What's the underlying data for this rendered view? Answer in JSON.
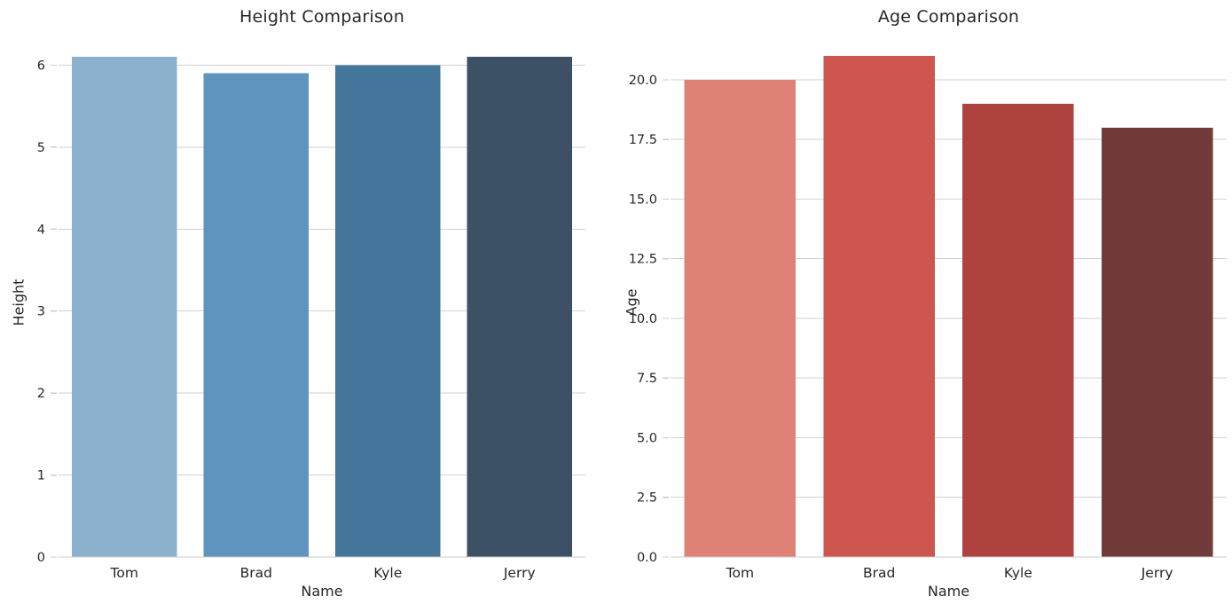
{
  "figure": {
    "background": "#ffffff",
    "text_color": "#262626",
    "grid_color": "#d2d2d2",
    "axis_line_color": "#cccccc"
  },
  "chart_data": [
    {
      "type": "bar",
      "title": "Height Comparison",
      "xlabel": "Name",
      "ylabel": "Height",
      "categories": [
        "Tom",
        "Brad",
        "Kyle",
        "Jerry"
      ],
      "values": [
        6.1,
        5.9,
        6.0,
        6.1
      ],
      "bar_colors": [
        "#8cb1cd",
        "#5e94bd",
        "#45779c",
        "#3c5166"
      ],
      "ylim": [
        0,
        6.2
      ],
      "yticks": [
        0,
        1,
        2,
        3,
        4,
        5,
        6
      ],
      "ytick_labels": [
        "0",
        "1",
        "2",
        "3",
        "4",
        "5",
        "6"
      ],
      "grid": "horizontal",
      "legend": "none",
      "bar_width_fraction": 0.8
    },
    {
      "type": "bar",
      "title": "Age Comparison",
      "xlabel": "Name",
      "ylabel": "Age",
      "categories": [
        "Tom",
        "Brad",
        "Kyle",
        "Jerry"
      ],
      "values": [
        20,
        21,
        19,
        18
      ],
      "bar_colors": [
        "#de8275",
        "#cd564f",
        "#ad423f",
        "#703b38"
      ],
      "ylim": [
        0,
        21.3
      ],
      "yticks": [
        0,
        2.5,
        5,
        7.5,
        10,
        12.5,
        15,
        17.5,
        20
      ],
      "ytick_labels": [
        "0.0",
        "2.5",
        "5.0",
        "7.5",
        "10.0",
        "12.5",
        "15.0",
        "17.5",
        "20.0"
      ],
      "grid": "horizontal",
      "legend": "none",
      "bar_width_fraction": 0.8
    }
  ]
}
